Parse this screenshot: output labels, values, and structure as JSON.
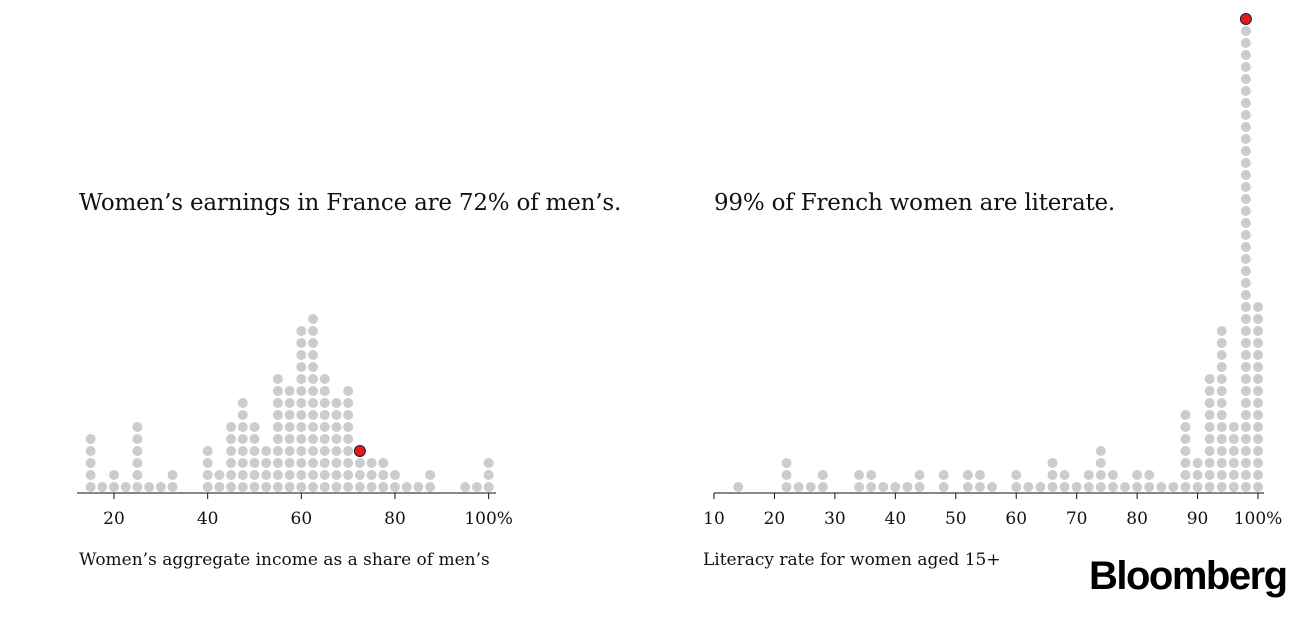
{
  "chart_data": [
    {
      "type": "dot-histogram",
      "title": "Women’s earnings in France are 72% of men’s.",
      "xlabel": "Women’s aggregate income as a share of men’s",
      "ylabel": "",
      "xlim": [
        12,
        101
      ],
      "x_ticks": [
        20,
        40,
        60,
        80,
        100
      ],
      "tick_labels": [
        "20",
        "40",
        "60",
        "80",
        "100%"
      ],
      "bin_x": [
        15,
        17.5,
        20,
        22.5,
        25,
        27.5,
        30,
        32.5,
        40,
        42.5,
        45,
        47.5,
        50,
        52.5,
        55,
        57.5,
        60,
        62.5,
        65,
        67.5,
        70,
        72.5,
        75,
        77.5,
        80,
        82.5,
        85,
        87.5,
        95,
        97.5,
        100
      ],
      "bin_counts": [
        5,
        1,
        2,
        1,
        6,
        1,
        1,
        2,
        4,
        2,
        6,
        8,
        6,
        4,
        10,
        9,
        14,
        15,
        10,
        8,
        9,
        3,
        3,
        3,
        2,
        1,
        1,
        2,
        1,
        1,
        3
      ],
      "highlight": {
        "label": "France",
        "value": 72
      },
      "highlight_color": "#e41a1c",
      "dot_color": "#cccccc"
    },
    {
      "type": "dot-histogram",
      "title": "99% of French women are literate.",
      "xlabel": "Literacy rate for women aged 15+",
      "ylabel": "",
      "xlim": [
        10,
        101
      ],
      "x_ticks": [
        10,
        20,
        30,
        40,
        50,
        60,
        70,
        80,
        90,
        100
      ],
      "tick_labels": [
        "10",
        "20",
        "30",
        "40",
        "50",
        "60",
        "70",
        "80",
        "90",
        "100%"
      ],
      "bin_x": [
        14,
        22,
        24,
        26,
        28,
        34,
        36,
        38,
        40,
        42,
        44,
        48,
        52,
        54,
        56,
        60,
        62,
        64,
        66,
        68,
        70,
        72,
        74,
        76,
        78,
        80,
        82,
        84,
        86,
        88,
        90,
        92,
        94,
        96,
        98,
        100
      ],
      "bin_counts": [
        1,
        3,
        1,
        1,
        2,
        2,
        2,
        1,
        1,
        1,
        2,
        2,
        2,
        2,
        1,
        2,
        1,
        1,
        3,
        2,
        1,
        2,
        4,
        2,
        1,
        2,
        2,
        1,
        1,
        7,
        3,
        10,
        14,
        6,
        39,
        16
      ],
      "highlight": {
        "label": "France",
        "value": 99
      },
      "highlight_color": "#e41a1c",
      "dot_color": "#cccccc"
    }
  ],
  "brand": {
    "logo_text": "Bloomberg"
  }
}
